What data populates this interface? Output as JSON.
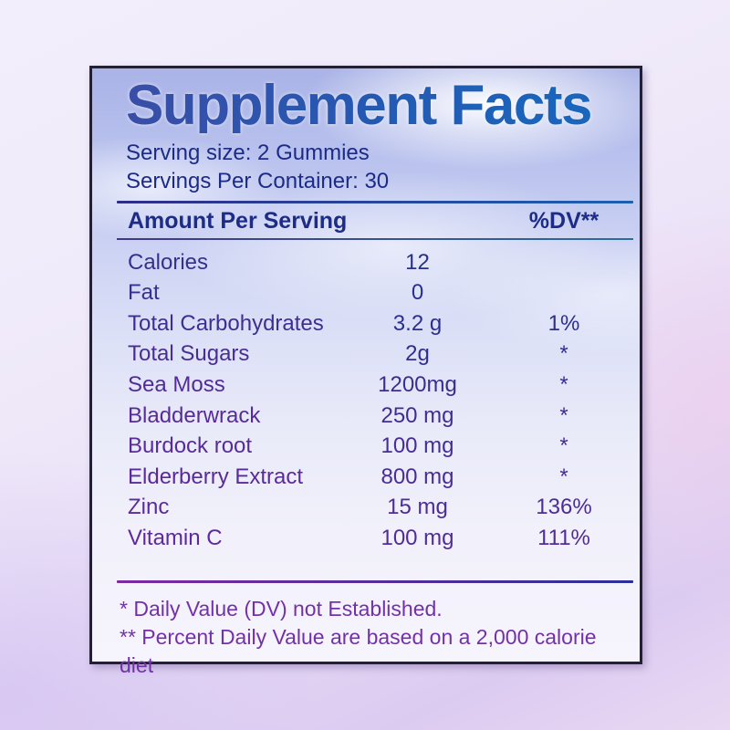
{
  "panel": {
    "title": "Supplement Facts",
    "serving_size": "Serving size: 2 Gummies",
    "servings_per_container": "Servings Per Container: 30",
    "header": {
      "amount_label": "Amount Per Serving",
      "dv_label": "%DV**"
    },
    "rows": [
      {
        "name": "Calories",
        "amount": "12",
        "dv": ""
      },
      {
        "name": "Fat",
        "amount": "0",
        "dv": ""
      },
      {
        "name": "Total Carbohydrates",
        "amount": "3.2 g",
        "dv": "1%"
      },
      {
        "name": "Total Sugars",
        "amount": "2g",
        "dv": "*"
      },
      {
        "name": "Sea Moss",
        "amount": "1200mg",
        "dv": "*"
      },
      {
        "name": "Bladderwrack",
        "amount": "250 mg",
        "dv": "*"
      },
      {
        "name": "Burdock root",
        "amount": "100 mg",
        "dv": "*"
      },
      {
        "name": "Elderberry Extract",
        "amount": "800 mg",
        "dv": "*"
      },
      {
        "name": "Zinc",
        "amount": "15 mg",
        "dv": "136%"
      },
      {
        "name": "Vitamin C",
        "amount": "100 mg",
        "dv": "111%"
      }
    ],
    "footnotes": [
      "* Daily Value (DV) not Established.",
      "** Percent Daily Value are based on a 2,000 calorie diet"
    ],
    "colors": {
      "title_blue_start": "#3a4ea7",
      "title_blue_end": "#176abf",
      "navy_text": "#1c2b87",
      "purple_text": "#5c2a9e",
      "footnote_purple": "#7231a8",
      "border_dark": "#232036"
    }
  }
}
